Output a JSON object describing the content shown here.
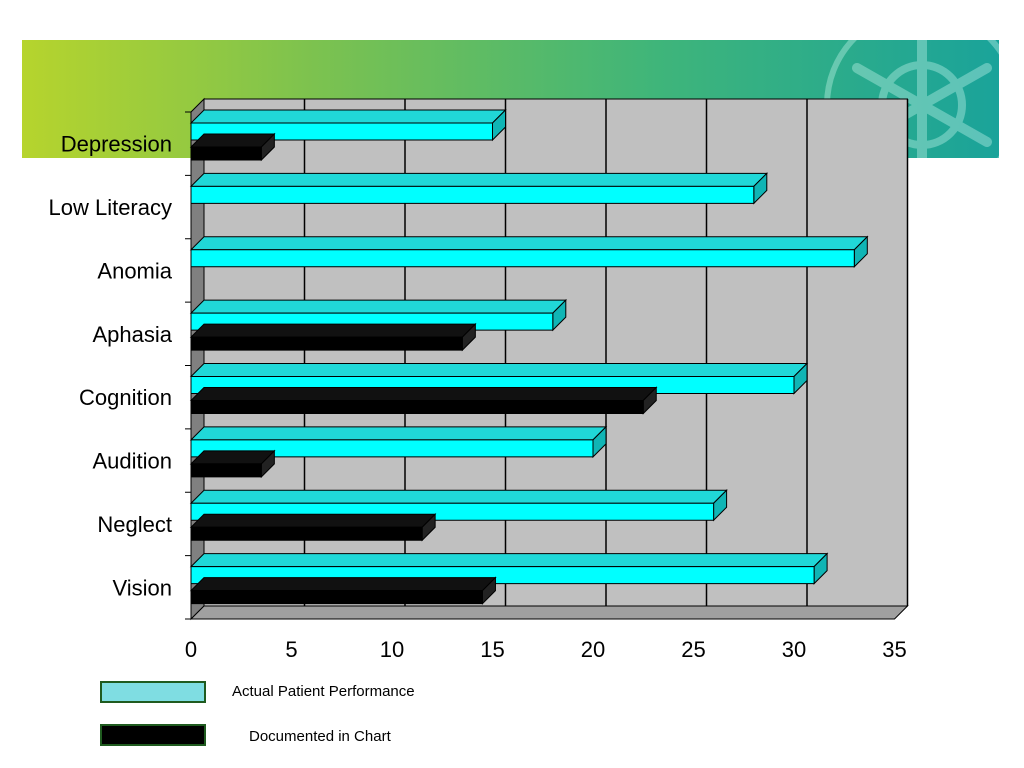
{
  "colors": {
    "actual": "#00ffff",
    "actual_top": "#20d8d8",
    "actual_side": "#10b5b5",
    "documented": "#000000",
    "plot_bg": "#c0c0c0",
    "legend_actual": "#7fdde2",
    "legend_documented": "#000000"
  },
  "chart_data": {
    "type": "bar",
    "orientation": "horizontal",
    "categories": [
      "Vision",
      "Neglect",
      "Audition",
      "Cognition",
      "Aphasia",
      "Anomia",
      "Low Literacy",
      "Depression"
    ],
    "series": [
      {
        "name": "Actual Patient Performance",
        "values": [
          31,
          26,
          20,
          30,
          18,
          33,
          28,
          15
        ]
      },
      {
        "name": "Documented in Chart",
        "values": [
          14.5,
          11.5,
          3.5,
          22.5,
          13.5,
          0,
          0,
          3.5
        ]
      }
    ],
    "xlim": [
      0,
      35
    ],
    "xticks": [
      0,
      5,
      10,
      15,
      20,
      25,
      30,
      35
    ],
    "grid": true,
    "legend_position": "bottom-left"
  },
  "legend": {
    "actual_label": "Actual Patient Performance",
    "documented_label": "Documented in Chart"
  }
}
